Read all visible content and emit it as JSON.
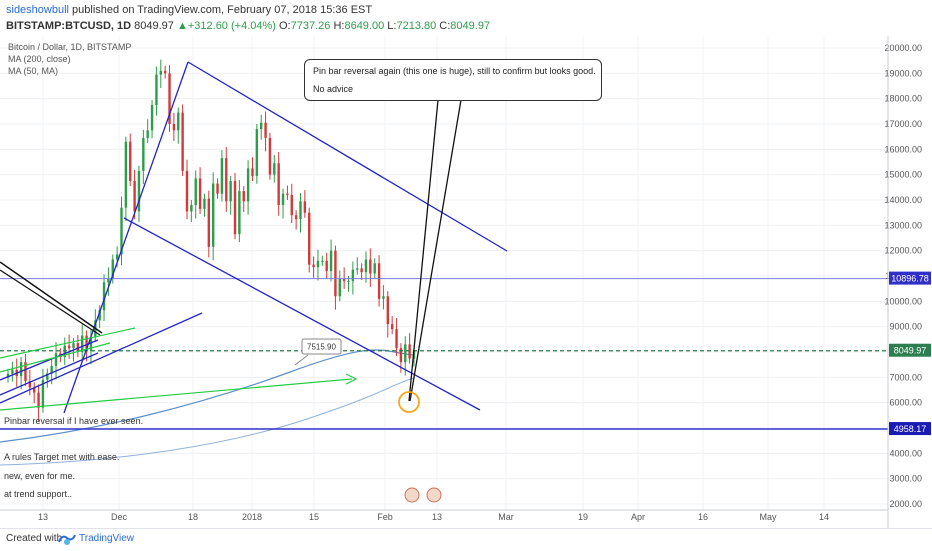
{
  "header": {
    "user": "sideshowbull",
    "published": "published on TradingView.com, February 07, 2018 15:36 EST",
    "symbol": "BITSTAMP:BTCUSD, 1D",
    "last": "8049.97",
    "change_arrow": "▲",
    "change": "+312.60 (+4.04%)",
    "o_label": "O:",
    "o": "7737.26",
    "h_label": "H:",
    "h": "8649.00",
    "l_label": "L:",
    "l": "7213.80",
    "c_label": "C:",
    "c": "8049.97"
  },
  "legend": {
    "title": "Bitcoin / Dollar, 1D, BITSTAMP",
    "ma200": "MA (200, close)",
    "ma50": "MA (50, MA)"
  },
  "note": {
    "line1": "Pin bar reversal again (this one is huge), still to confirm but looks good.",
    "line2": "No advice"
  },
  "annotations": {
    "pinbar": "Pinbar reversal if I have ever seen.",
    "rules": "A rules Target met with ease.",
    "new": "new, even for me.",
    "trend": "at trend support..",
    "callout": "7515.90"
  },
  "footer": {
    "created": "Created with",
    "brand": "TradingView"
  },
  "colors": {
    "up": "#2e9c4a",
    "down": "#d03a3a",
    "trendline": "#2323c8",
    "green_line": "#22cc44",
    "ma": "#5b8fc9",
    "level_line": "#3434d0",
    "price_line": "#2e7d4f",
    "circle": "#f5a623"
  },
  "chart_data": {
    "type": "candlestick",
    "title": "Bitcoin / Dollar, 1D, BITSTAMP",
    "ylim": [
      2000,
      20500
    ],
    "y_ticks": [
      2000,
      3000,
      4000,
      5000,
      6000,
      7000,
      8000,
      9000,
      10000,
      11000,
      12000,
      13000,
      14000,
      15000,
      16000,
      17000,
      18000,
      19000,
      20000
    ],
    "x_ticks": [
      "13",
      "Dec",
      "18",
      "2018",
      "15",
      "Feb",
      "13",
      "Mar",
      "19",
      "Apr",
      "16",
      "May",
      "14"
    ],
    "price_labels": [
      {
        "value": 10896.78,
        "label": "10896.78"
      },
      {
        "value": 8049.97,
        "label": "8049.97"
      },
      {
        "value": 4958.17,
        "label": "4958.17"
      }
    ],
    "closes": [
      7140,
      7300,
      7050,
      7600,
      6850,
      6600,
      6400,
      5800,
      6900,
      7150,
      7450,
      7950,
      7800,
      8250,
      8150,
      8350,
      8000,
      8650,
      8050,
      8600,
      9250,
      9650,
      10750,
      10900,
      11650,
      11850,
      13700,
      16300,
      14750,
      13550,
      15150,
      16450,
      16750,
      17750,
      18950,
      19100,
      19000,
      17000,
      16750,
      17450,
      15150,
      13550,
      13800,
      14850,
      13650,
      14050,
      12150,
      14650,
      14250,
      15650,
      13950,
      14750,
      12650,
      14350,
      13950,
      15250,
      14950,
      16800,
      17050,
      16450,
      15000,
      15450,
      13800,
      14250,
      14200,
      13400,
      13250,
      13950,
      13500,
      11450,
      11350,
      11600,
      11600,
      11200,
      12000,
      10200,
      10900,
      10800,
      10800,
      11250,
      11300,
      11150,
      11650,
      11100,
      11500,
      10100,
      10200,
      9100,
      8900,
      8150,
      7600,
      8300,
      7737,
      8049.97
    ]
  }
}
